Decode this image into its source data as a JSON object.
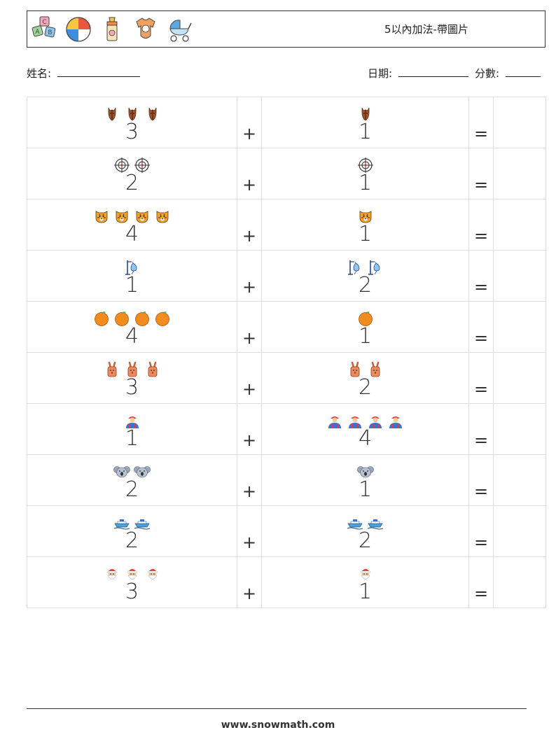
{
  "header": {
    "title": "5以內加法-帶圖片",
    "icons": [
      "abc-blocks-icon",
      "beach-ball-icon",
      "baby-bottle-icon",
      "baby-onesie-icon",
      "baby-stroller-icon"
    ]
  },
  "meta": {
    "name_label": "姓名:",
    "date_label": "日期:",
    "score_label": "分數:"
  },
  "problems": [
    {
      "left": {
        "n": "3",
        "icon": "horse"
      },
      "op": "+",
      "right": {
        "n": "1",
        "icon": "horse"
      },
      "eq": "="
    },
    {
      "left": {
        "n": "2",
        "icon": "crosshair"
      },
      "op": "+",
      "right": {
        "n": "1",
        "icon": "crosshair"
      },
      "eq": "="
    },
    {
      "left": {
        "n": "4",
        "icon": "tiger"
      },
      "op": "+",
      "right": {
        "n": "1",
        "icon": "tiger"
      },
      "eq": "="
    },
    {
      "left": {
        "n": "1",
        "icon": "iv-drip"
      },
      "op": "+",
      "right": {
        "n": "2",
        "icon": "iv-drip"
      },
      "eq": "="
    },
    {
      "left": {
        "n": "4",
        "icon": "orange"
      },
      "op": "+",
      "right": {
        "n": "1",
        "icon": "orange"
      },
      "eq": "="
    },
    {
      "left": {
        "n": "3",
        "icon": "rabbit"
      },
      "op": "+",
      "right": {
        "n": "2",
        "icon": "rabbit"
      },
      "eq": "="
    },
    {
      "left": {
        "n": "1",
        "icon": "worker"
      },
      "op": "+",
      "right": {
        "n": "4",
        "icon": "worker"
      },
      "eq": "="
    },
    {
      "left": {
        "n": "2",
        "icon": "koala"
      },
      "op": "+",
      "right": {
        "n": "1",
        "icon": "koala"
      },
      "eq": "="
    },
    {
      "left": {
        "n": "2",
        "icon": "ship"
      },
      "op": "+",
      "right": {
        "n": "2",
        "icon": "ship"
      },
      "eq": "="
    },
    {
      "left": {
        "n": "3",
        "icon": "santa"
      },
      "op": "+",
      "right": {
        "n": "1",
        "icon": "santa"
      },
      "eq": "="
    }
  ],
  "footer": {
    "text": "www.snowmath.com"
  }
}
